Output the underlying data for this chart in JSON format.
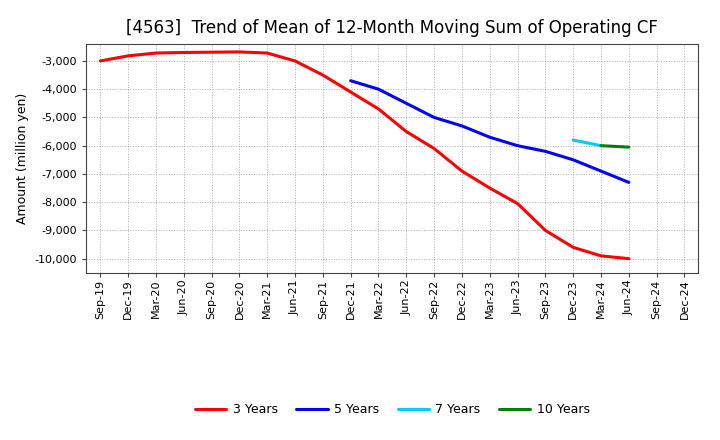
{
  "title": "[4563]  Trend of Mean of 12-Month Moving Sum of Operating CF",
  "ylabel": "Amount (million yen)",
  "background_color": "#ffffff",
  "grid_color": "#999999",
  "ylim_min": -10500,
  "ylim_max": -2400,
  "yticks": [
    -10000,
    -9000,
    -8000,
    -7000,
    -6000,
    -5000,
    -4000,
    -3000
  ],
  "series": {
    "3 Years": {
      "color": "#ff0000",
      "points": [
        [
          "Sep-19",
          -3000
        ],
        [
          "Dec-19",
          -2820
        ],
        [
          "Mar-20",
          -2720
        ],
        [
          "Jun-20",
          -2700
        ],
        [
          "Sep-20",
          -2690
        ],
        [
          "Dec-20",
          -2680
        ],
        [
          "Mar-21",
          -2720
        ],
        [
          "Jun-21",
          -3000
        ],
        [
          "Sep-21",
          -3500
        ],
        [
          "Dec-21",
          -4100
        ],
        [
          "Mar-22",
          -4700
        ],
        [
          "Jun-22",
          -5500
        ],
        [
          "Sep-22",
          -6100
        ],
        [
          "Dec-22",
          -6900
        ],
        [
          "Mar-23",
          -7500
        ],
        [
          "Jun-23",
          -8050
        ],
        [
          "Sep-23",
          -9000
        ],
        [
          "Dec-23",
          -9600
        ],
        [
          "Mar-24",
          -9900
        ],
        [
          "Jun-24",
          -10000
        ]
      ]
    },
    "5 Years": {
      "color": "#0000ff",
      "points": [
        [
          "Dec-21",
          -3700
        ],
        [
          "Mar-22",
          -4000
        ],
        [
          "Jun-22",
          -4500
        ],
        [
          "Sep-22",
          -5000
        ],
        [
          "Dec-22",
          -5300
        ],
        [
          "Mar-23",
          -5700
        ],
        [
          "Jun-23",
          -6000
        ],
        [
          "Sep-23",
          -6200
        ],
        [
          "Dec-23",
          -6500
        ],
        [
          "Mar-24",
          -6900
        ],
        [
          "Jun-24",
          -7300
        ]
      ]
    },
    "7 Years": {
      "color": "#00ccff",
      "points": [
        [
          "Dec-23",
          -5800
        ],
        [
          "Mar-24",
          -6000
        ]
      ]
    },
    "10 Years": {
      "color": "#008000",
      "points": [
        [
          "Mar-24",
          -6000
        ],
        [
          "Jun-24",
          -6050
        ]
      ]
    }
  },
  "x_tick_labels": [
    "Sep-19",
    "Dec-19",
    "Mar-20",
    "Jun-20",
    "Sep-20",
    "Dec-20",
    "Mar-21",
    "Jun-21",
    "Sep-21",
    "Dec-21",
    "Mar-22",
    "Jun-22",
    "Sep-22",
    "Dec-22",
    "Mar-23",
    "Jun-23",
    "Sep-23",
    "Dec-23",
    "Mar-24",
    "Jun-24",
    "Sep-24",
    "Dec-24"
  ],
  "title_fontsize": 12,
  "label_fontsize": 9,
  "tick_fontsize": 8,
  "legend_fontsize": 9,
  "linewidth": 2.2
}
